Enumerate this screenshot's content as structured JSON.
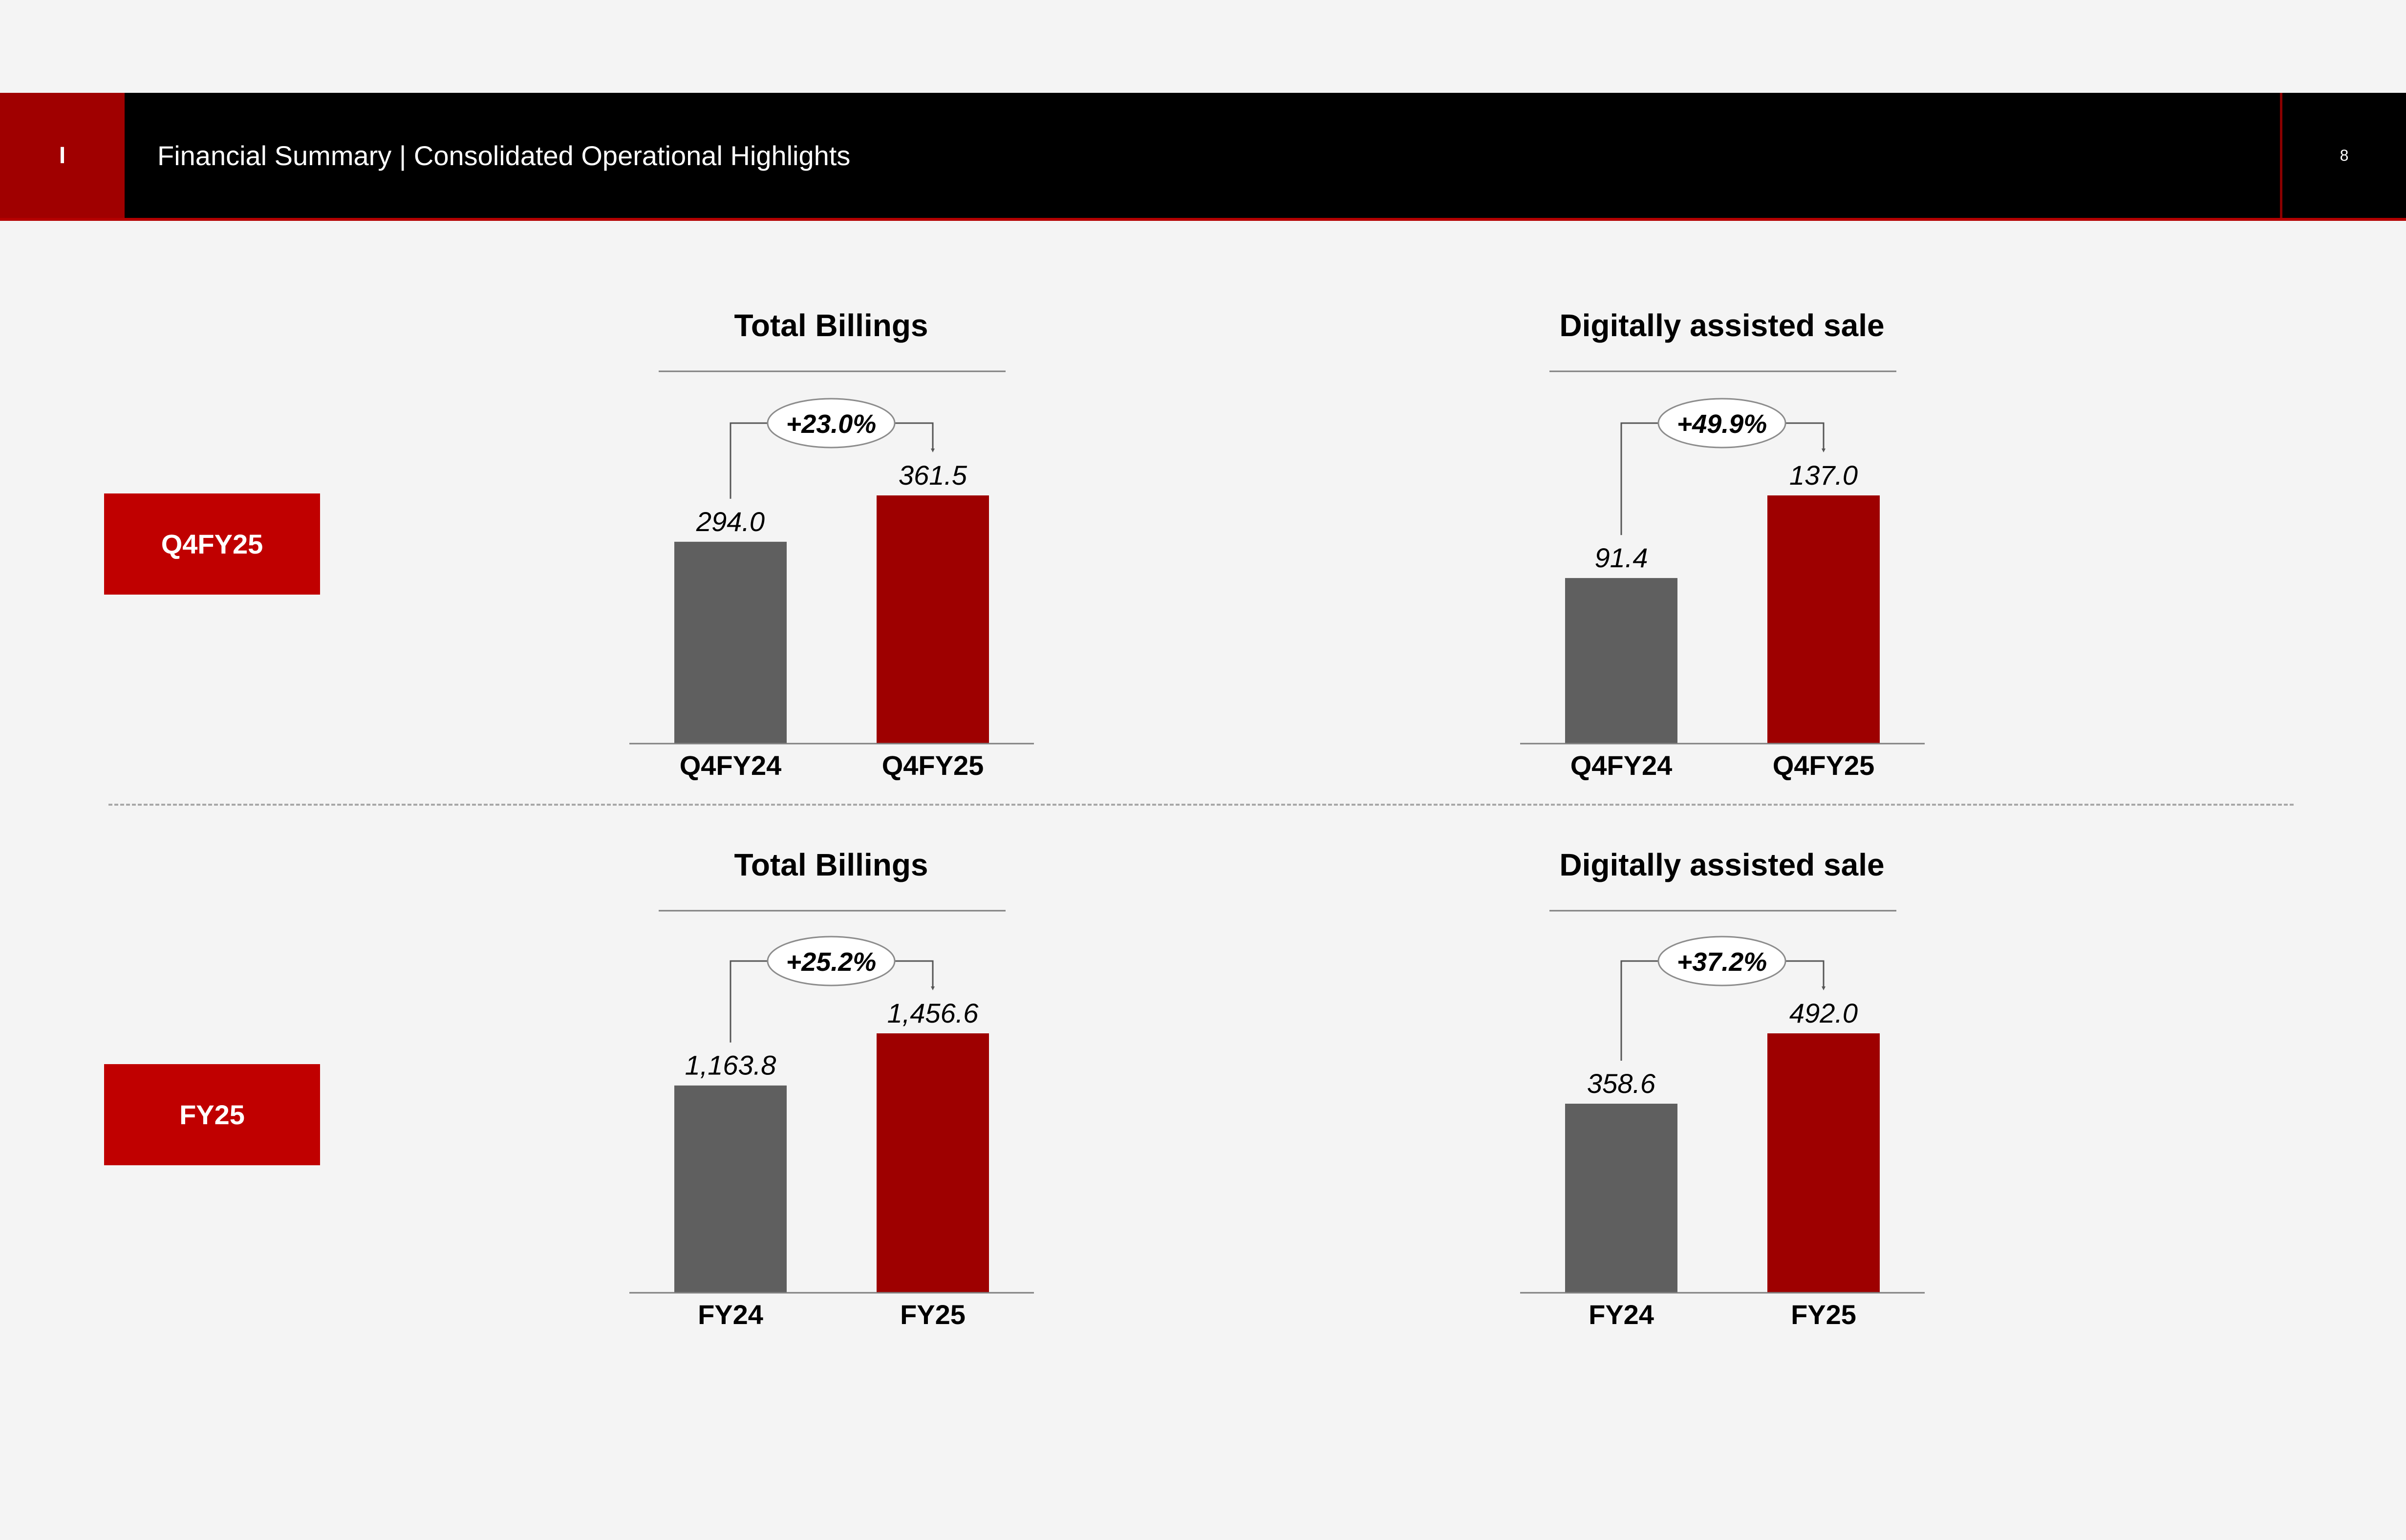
{
  "header": {
    "section_marker": "I",
    "title": "Financial Summary | Consolidated Operational Highlights",
    "page_number": "8"
  },
  "rows": [
    {
      "period_label": "Q4FY25"
    },
    {
      "period_label": "FY25"
    }
  ],
  "colors": {
    "header_bg": "#000000",
    "accent_red": "#a00000",
    "period_box": "#c00000",
    "bar_prior": "#5f5f5f",
    "bar_current": "#9e0000",
    "background": "#f4f4f4"
  },
  "chart_data": [
    {
      "type": "bar",
      "title": "Total Billings",
      "categories": [
        "Q4FY24",
        "Q4FY25"
      ],
      "values": [
        294.0,
        361.5
      ],
      "value_labels": [
        "294.0",
        "361.5"
      ],
      "growth_label": "+23.0%"
    },
    {
      "type": "bar",
      "title": "Digitally assisted sale",
      "categories": [
        "Q4FY24",
        "Q4FY25"
      ],
      "values": [
        91.4,
        137.0
      ],
      "value_labels": [
        "91.4",
        "137.0"
      ],
      "growth_label": "+49.9%"
    },
    {
      "type": "bar",
      "title": "Total Billings",
      "categories": [
        "FY24",
        "FY25"
      ],
      "values": [
        1163.8,
        1456.6
      ],
      "value_labels": [
        "1,163.8",
        "1,456.6"
      ],
      "growth_label": "+25.2%"
    },
    {
      "type": "bar",
      "title": "Digitally assisted sale",
      "categories": [
        "FY24",
        "FY25"
      ],
      "values": [
        358.6,
        492.0
      ],
      "value_labels": [
        "358.6",
        "492.0"
      ],
      "growth_label": "+37.2%"
    }
  ]
}
